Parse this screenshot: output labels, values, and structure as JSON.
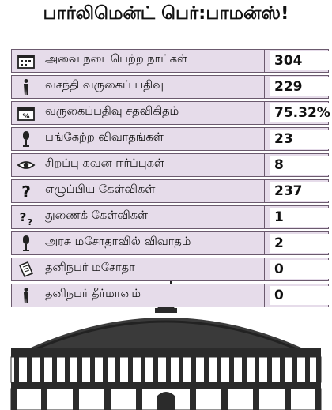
{
  "title": "பார்லிமென்ட் பெர்:பாமன்ஸ்!",
  "rows": [
    {
      "icon": "calendar-icon",
      "label": "அவை நடைபெற்ற நாட்கள்",
      "value": "304"
    },
    {
      "icon": "person-icon",
      "label": "வசந்தி வருகைப் பதிவு",
      "value": "229"
    },
    {
      "icon": "percent-calendar-icon",
      "label": "வருகைப்பதிவு சதவிகிதம்",
      "value": "75.32%"
    },
    {
      "icon": "microphone-icon",
      "label": "பங்கேற்ற விவாதங்கள்",
      "value": "23"
    },
    {
      "icon": "eye-icon",
      "label": "சிறப்பு கவன ஈர்ப்புகள்",
      "value": "8"
    },
    {
      "icon": "question-icon",
      "label": "எழுப்பிய கேள்விகள்",
      "value": "237"
    },
    {
      "icon": "double-question-icon",
      "label": "துணைக் கேள்விகள்",
      "value": "1"
    },
    {
      "icon": "microphone-icon",
      "label": "அரசு மசோதாவில் விவாதம்",
      "value": "2"
    },
    {
      "icon": "document-icon",
      "label": "தனிநபர் மசோதா",
      "value": "0"
    },
    {
      "icon": "person-icon",
      "label": "தனிநபர் தீர்மானம்",
      "value": "0"
    }
  ]
}
